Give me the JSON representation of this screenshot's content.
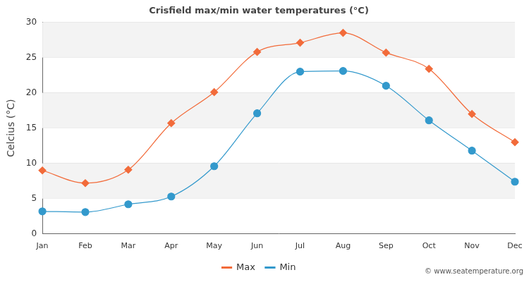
{
  "chart_data": {
    "type": "line",
    "title": "Crisfield max/min water temperatures (°C)",
    "y_label": "Celcius (°C)",
    "annotation": "© www.seatemperature.org",
    "categories": [
      "Jan",
      "Feb",
      "Mar",
      "Apr",
      "May",
      "Jun",
      "Jul",
      "Aug",
      "Sep",
      "Oct",
      "Nov",
      "Dec"
    ],
    "series": [
      {
        "name": "Max",
        "color": "#f26b3a",
        "marker": "diamond",
        "values": [
          9.0,
          7.2,
          9.1,
          15.7,
          20.1,
          25.8,
          27.1,
          28.5,
          25.7,
          23.4,
          17.0,
          13.0
        ]
      },
      {
        "name": "Min",
        "color": "#3399cc",
        "marker": "circle",
        "values": [
          3.2,
          3.1,
          4.2,
          5.3,
          9.6,
          17.1,
          23.0,
          23.1,
          21.0,
          16.1,
          11.8,
          7.4
        ]
      }
    ],
    "ylim": [
      0,
      30
    ],
    "yticks": [
      0,
      5,
      10,
      15,
      20,
      25,
      30
    ],
    "grid": true,
    "legend": "bottom"
  }
}
